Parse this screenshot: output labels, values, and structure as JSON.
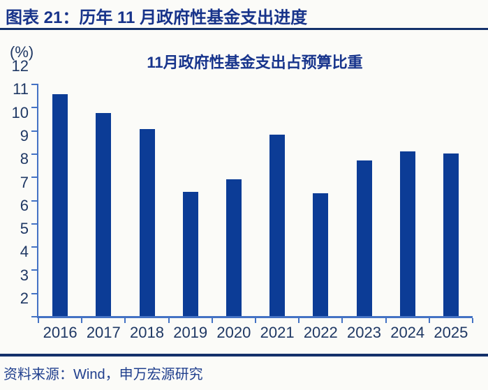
{
  "header": {
    "title": "图表 21：历年 11 月政府性基金支出进度"
  },
  "chart": {
    "unit_label": "(%)"
  },
  "chart_data": {
    "type": "bar",
    "title": "11月政府性基金支出占预算比重",
    "categories": [
      "2016",
      "2017",
      "2018",
      "2019",
      "2020",
      "2021",
      "2022",
      "2023",
      "2024",
      "2025"
    ],
    "values": [
      11.55,
      10.75,
      10.05,
      7.35,
      7.9,
      9.8,
      7.3,
      8.7,
      9.1,
      9.0
    ],
    "xlabel": "",
    "ylabel": "(%)",
    "ylim": [
      2,
      12
    ],
    "ytick_step": 1,
    "yticks": [
      2,
      3,
      4,
      5,
      6,
      7,
      8,
      9,
      10,
      11,
      12
    ],
    "grid": false,
    "legend": false,
    "bar_color": "#0c3c96",
    "axis_color": "#4472c4",
    "label_color": "#1f3864"
  },
  "footer": {
    "source": "资料来源：Wind，申万宏源研究"
  },
  "colors": {
    "rule_navy": "#14316b",
    "title_navy": "#17348c",
    "background": "#fbfbf8"
  }
}
